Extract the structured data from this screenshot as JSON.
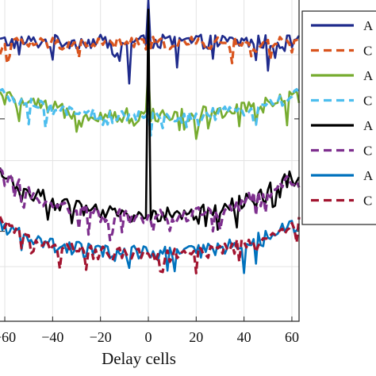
{
  "chart_data": {
    "type": "line",
    "xlabel": "Delay cells",
    "x_ticks": [
      "60",
      "40",
      "20",
      "0",
      "20",
      "40",
      "60"
    ],
    "x_tick_values": [
      -60,
      -40,
      -20,
      0,
      20,
      40,
      60
    ],
    "xlim": [
      -62,
      63
    ],
    "ylim": [
      0,
      1
    ],
    "grid": true,
    "legend": {
      "placement": "right",
      "entries": [
        {
          "label": "A",
          "color": "#1f2b8c",
          "dash": "solid"
        },
        {
          "label": "C",
          "color": "#d9541e",
          "dash": "dashed"
        },
        {
          "label": "A",
          "color": "#77ac30",
          "dash": "solid"
        },
        {
          "label": "C",
          "color": "#4dbeee",
          "dash": "dashed"
        },
        {
          "label": "A",
          "color": "#000000",
          "dash": "solid"
        },
        {
          "label": "C",
          "color": "#7e2f8e",
          "dash": "dashed"
        },
        {
          "label": "A",
          "color": "#0072bd",
          "dash": "solid"
        },
        {
          "label": "C",
          "color": "#a2142f",
          "dash": "dashed"
        }
      ]
    },
    "series": [
      {
        "color": "#1f2b8c",
        "dash": "solid",
        "base": 0.87,
        "bowl": 0.0,
        "noise": 0.022,
        "dips": [
          [
            -8,
            0.74
          ],
          [
            12,
            0.79
          ],
          [
            50,
            0.78
          ]
        ],
        "peak": 1.0,
        "width": 2.6
      },
      {
        "color": "#d9541e",
        "dash": "dashed",
        "base": 0.865,
        "bowl": 0.0,
        "noise": 0.02,
        "dips": [],
        "peak": 0.88,
        "width": 3.2
      },
      {
        "color": "#77ac30",
        "dash": "solid",
        "base": 0.64,
        "bowl": 0.06,
        "noise": 0.025,
        "dips": [
          [
            -30,
            0.59
          ],
          [
            25,
            0.6
          ],
          [
            58,
            0.61
          ]
        ],
        "peak": 0.79,
        "width": 2.6
      },
      {
        "color": "#4dbeee",
        "dash": "dashed",
        "base": 0.635,
        "bowl": 0.07,
        "noise": 0.02,
        "dips": [],
        "peak": 0.66,
        "width": 3.2
      },
      {
        "color": "#000000",
        "dash": "solid",
        "base": 0.33,
        "bowl": 0.13,
        "noise": 0.025,
        "dips": [],
        "peak": 0.97,
        "width": 2.6
      },
      {
        "color": "#7e2f8e",
        "dash": "dashed",
        "base": 0.325,
        "bowl": 0.13,
        "noise": 0.025,
        "dips": [],
        "peak": 0.33,
        "width": 3.2
      },
      {
        "color": "#0072bd",
        "dash": "solid",
        "base": 0.21,
        "bowl": 0.09,
        "noise": 0.025,
        "dips": [
          [
            0,
            0.14
          ],
          [
            40,
            0.15
          ]
        ],
        "peak": 0.21,
        "width": 2.6
      },
      {
        "color": "#a2142f",
        "dash": "dashed",
        "base": 0.205,
        "bowl": 0.1,
        "noise": 0.022,
        "dips": [
          [
            20,
            0.15
          ]
        ],
        "peak": 0.21,
        "width": 3.2
      }
    ]
  }
}
